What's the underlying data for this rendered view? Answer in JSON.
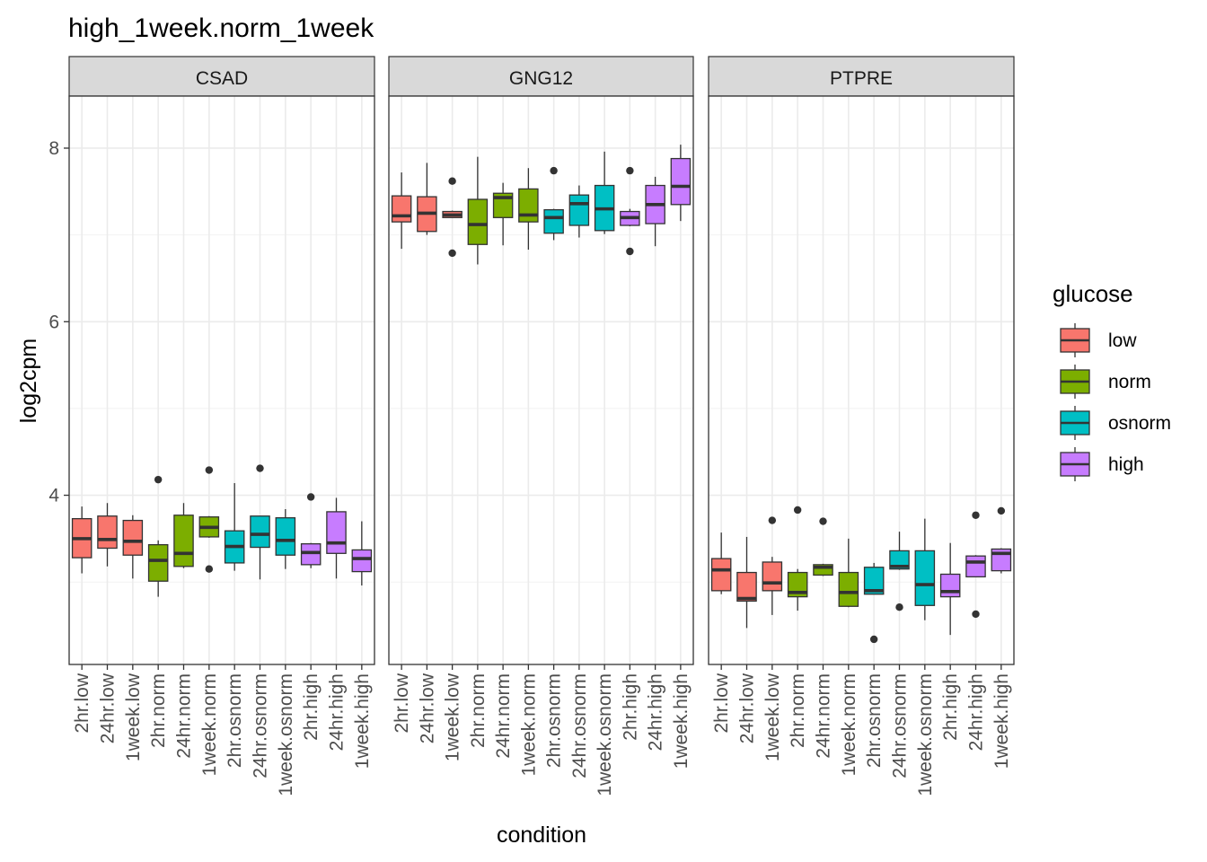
{
  "chart_data": {
    "type": "box",
    "title": "high_1week.norm_1week",
    "xlabel": "condition",
    "ylabel": "log2cpm",
    "ylim": [
      2.05,
      8.6
    ],
    "yticks": [
      4,
      6,
      8
    ],
    "grid": true,
    "legend": {
      "title": "glucose",
      "position": "right",
      "items": [
        {
          "label": "low",
          "color": "#F8766D"
        },
        {
          "label": "norm",
          "color": "#7CAE00"
        },
        {
          "label": "osnorm",
          "color": "#00BFC4"
        },
        {
          "label": "high",
          "color": "#C77CFF"
        }
      ]
    },
    "categories": [
      "2hr.low",
      "24hr.low",
      "1week.low",
      "2hr.norm",
      "24hr.norm",
      "1week.norm",
      "2hr.osnorm",
      "24hr.osnorm",
      "1week.osnorm",
      "2hr.high",
      "24hr.high",
      "1week.high"
    ],
    "category_group": [
      "low",
      "low",
      "low",
      "norm",
      "norm",
      "norm",
      "osnorm",
      "osnorm",
      "osnorm",
      "high",
      "high",
      "high"
    ],
    "panels": [
      {
        "name": "CSAD",
        "boxes": [
          {
            "lw": 3.1,
            "q1": 3.28,
            "med": 3.5,
            "q3": 3.73,
            "uw": 3.87,
            "out": []
          },
          {
            "lw": 3.18,
            "q1": 3.39,
            "med": 3.49,
            "q3": 3.76,
            "uw": 3.91,
            "out": []
          },
          {
            "lw": 3.04,
            "q1": 3.31,
            "med": 3.47,
            "q3": 3.71,
            "uw": 3.77,
            "out": []
          },
          {
            "lw": 2.83,
            "q1": 3.01,
            "med": 3.25,
            "q3": 3.43,
            "uw": 3.48,
            "out": [
              4.18
            ]
          },
          {
            "lw": 3.16,
            "q1": 3.18,
            "med": 3.33,
            "q3": 3.77,
            "uw": 3.91,
            "out": []
          },
          {
            "lw": 3.51,
            "q1": 3.52,
            "med": 3.63,
            "q3": 3.75,
            "uw": 3.76,
            "out": [
              4.29,
              3.15
            ]
          },
          {
            "lw": 3.13,
            "q1": 3.22,
            "med": 3.41,
            "q3": 3.59,
            "uw": 4.14,
            "out": []
          },
          {
            "lw": 3.03,
            "q1": 3.4,
            "med": 3.55,
            "q3": 3.76,
            "uw": 3.76,
            "out": [
              4.31
            ]
          },
          {
            "lw": 3.15,
            "q1": 3.31,
            "med": 3.48,
            "q3": 3.74,
            "uw": 3.84,
            "out": []
          },
          {
            "lw": 3.16,
            "q1": 3.2,
            "med": 3.34,
            "q3": 3.44,
            "uw": 3.45,
            "out": [
              3.98
            ]
          },
          {
            "lw": 3.04,
            "q1": 3.33,
            "med": 3.45,
            "q3": 3.81,
            "uw": 3.97,
            "out": []
          },
          {
            "lw": 2.96,
            "q1": 3.12,
            "med": 3.27,
            "q3": 3.37,
            "uw": 3.7,
            "out": []
          }
        ]
      },
      {
        "name": "GNG12",
        "boxes": [
          {
            "lw": 6.84,
            "q1": 7.15,
            "med": 7.22,
            "q3": 7.45,
            "uw": 7.72,
            "out": []
          },
          {
            "lw": 7.0,
            "q1": 7.04,
            "med": 7.25,
            "q3": 7.44,
            "uw": 7.83,
            "out": []
          },
          {
            "lw": 7.2,
            "q1": 7.2,
            "med": 7.23,
            "q3": 7.27,
            "uw": 7.28,
            "out": [
              7.62,
              6.79
            ]
          },
          {
            "lw": 6.66,
            "q1": 6.89,
            "med": 7.12,
            "q3": 7.41,
            "uw": 7.9,
            "out": []
          },
          {
            "lw": 6.88,
            "q1": 7.2,
            "med": 7.43,
            "q3": 7.48,
            "uw": 7.6,
            "out": []
          },
          {
            "lw": 6.83,
            "q1": 7.15,
            "med": 7.23,
            "q3": 7.53,
            "uw": 7.77,
            "out": []
          },
          {
            "lw": 6.94,
            "q1": 7.02,
            "med": 7.2,
            "q3": 7.29,
            "uw": 7.3,
            "out": [
              7.74
            ]
          },
          {
            "lw": 6.97,
            "q1": 7.11,
            "med": 7.36,
            "q3": 7.46,
            "uw": 7.57,
            "out": []
          },
          {
            "lw": 7.01,
            "q1": 7.05,
            "med": 7.3,
            "q3": 7.57,
            "uw": 7.96,
            "out": []
          },
          {
            "lw": 7.1,
            "q1": 7.11,
            "med": 7.2,
            "q3": 7.27,
            "uw": 7.3,
            "out": [
              7.74,
              6.81
            ]
          },
          {
            "lw": 6.87,
            "q1": 7.13,
            "med": 7.35,
            "q3": 7.57,
            "uw": 7.67,
            "out": []
          },
          {
            "lw": 7.16,
            "q1": 7.35,
            "med": 7.56,
            "q3": 7.88,
            "uw": 8.04,
            "out": []
          }
        ]
      },
      {
        "name": "PTPRE",
        "boxes": [
          {
            "lw": 2.86,
            "q1": 2.9,
            "med": 3.14,
            "q3": 3.27,
            "uw": 3.57,
            "out": []
          },
          {
            "lw": 2.47,
            "q1": 2.78,
            "med": 2.81,
            "q3": 3.11,
            "uw": 3.52,
            "out": []
          },
          {
            "lw": 2.62,
            "q1": 2.9,
            "med": 2.99,
            "q3": 3.23,
            "uw": 3.29,
            "out": [
              3.71
            ]
          },
          {
            "lw": 2.67,
            "q1": 2.83,
            "med": 2.88,
            "q3": 3.11,
            "uw": 3.15,
            "out": [
              3.83
            ]
          },
          {
            "lw": 3.07,
            "q1": 3.08,
            "med": 3.17,
            "q3": 3.2,
            "uw": 3.21,
            "out": [
              3.7
            ]
          },
          {
            "lw": 2.71,
            "q1": 2.72,
            "med": 2.88,
            "q3": 3.11,
            "uw": 3.5,
            "out": []
          },
          {
            "lw": 2.88,
            "q1": 2.86,
            "med": 2.9,
            "q3": 3.17,
            "uw": 3.22,
            "out": [
              2.34
            ]
          },
          {
            "lw": 3.14,
            "q1": 3.15,
            "med": 3.18,
            "q3": 3.36,
            "uw": 3.58,
            "out": [
              2.71
            ]
          },
          {
            "lw": 2.56,
            "q1": 2.73,
            "med": 2.97,
            "q3": 3.36,
            "uw": 3.73,
            "out": []
          },
          {
            "lw": 2.39,
            "q1": 2.83,
            "med": 2.89,
            "q3": 3.09,
            "uw": 3.45,
            "out": []
          },
          {
            "lw": 3.07,
            "q1": 3.06,
            "med": 3.23,
            "q3": 3.3,
            "uw": 3.31,
            "out": [
              3.77,
              2.63
            ]
          },
          {
            "lw": 3.1,
            "q1": 3.13,
            "med": 3.33,
            "q3": 3.38,
            "uw": 3.39,
            "out": [
              3.82
            ]
          }
        ]
      }
    ]
  }
}
